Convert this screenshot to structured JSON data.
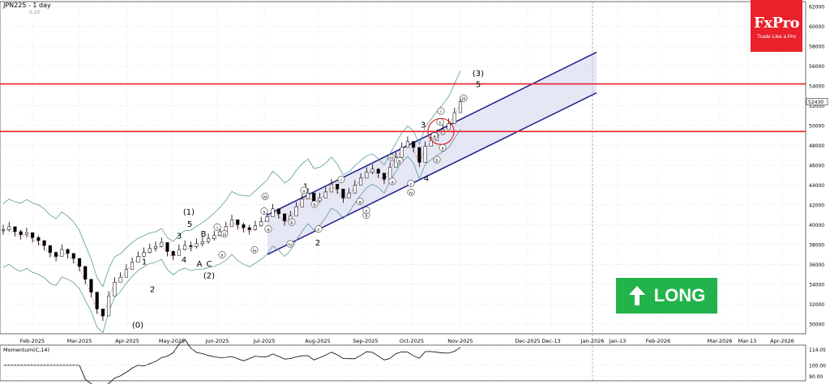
{
  "header": {
    "title": "JPN225 - 1 day",
    "subtitle": "0.20"
  },
  "logo": {
    "brand": "FxPro",
    "tagline": "Trade Like a Pro"
  },
  "signal": {
    "label": "LONG",
    "color": "#22b34b",
    "icon": "up-arrow-icon"
  },
  "momentum": {
    "label": "Momentum(C,14)",
    "yticks": [
      "114.05",
      "100.00",
      "90.00"
    ]
  },
  "colors": {
    "accent": "#e8212a",
    "channel": "#1f1f8c",
    "band": "#5a9a9a",
    "signal": "#22b34b"
  },
  "chart_data": {
    "type": "line",
    "title": "JPN225 - 1 day",
    "x_labels": [
      "Feb-2025",
      "Mar-2025",
      "Apr-2025",
      "May-2025",
      "Jun-2025",
      "Jul-2025",
      "Aug-2025",
      "Sep-2025",
      "Oct-2025",
      "Nov-2025",
      "Dec-2025",
      "Dec-13",
      "Jan-2026",
      "Jan-13",
      "Feb-2026",
      "Mar-2026",
      "Mar-13",
      "Apr-2026"
    ],
    "y_ticks": [
      30000,
      32000,
      34000,
      36000,
      38000,
      40000,
      42000,
      44000,
      46000,
      48000,
      50000,
      52000,
      54000,
      56000,
      58000,
      60000,
      62000
    ],
    "ylim": [
      29000,
      62500
    ],
    "last_price_label": "52430",
    "grid": true,
    "resistance_levels": [
      54200,
      49400
    ],
    "series": [
      {
        "values": [
          39500,
          39800,
          39300,
          39000,
          39200,
          38700,
          38400,
          37900,
          37200,
          36800,
          37500,
          37100,
          36600,
          35800,
          34500,
          33200,
          31500,
          30800,
          32800,
          34200,
          34700,
          35500,
          36200,
          36800,
          37200,
          37600,
          37800,
          38200,
          37300,
          36900,
          37500,
          37900,
          37800,
          38100,
          38300,
          38600,
          38900,
          39300,
          39800,
          40500,
          40000,
          39700,
          39500,
          39900,
          40300,
          40800,
          41600,
          41100,
          40400,
          40900,
          41800,
          42600,
          43200,
          42400,
          42700,
          43300,
          44100,
          43600,
          42700,
          43200,
          44000,
          44700,
          45300,
          45600,
          45200,
          44600,
          45800,
          46800,
          47800,
          48400,
          47800,
          46300,
          47900,
          48500,
          49100,
          49600,
          50200,
          51300,
          52400
        ]
      }
    ],
    "channel": {
      "upper": [
        [
          1,
          41000
        ],
        [
          1.93,
          57400
        ]
      ],
      "lower": [
        [
          1,
          37000
        ],
        [
          1.93,
          53300
        ]
      ]
    },
    "wave_labels": [
      "(0)",
      "1",
      "2",
      "3",
      "4",
      "5",
      "(1)",
      "A",
      "B",
      "C",
      "(2)",
      "1",
      "2",
      "3",
      "4",
      "5",
      "(3)",
      "i",
      "ii",
      "iii",
      "iv",
      "v",
      "a",
      "b",
      "c"
    ]
  }
}
